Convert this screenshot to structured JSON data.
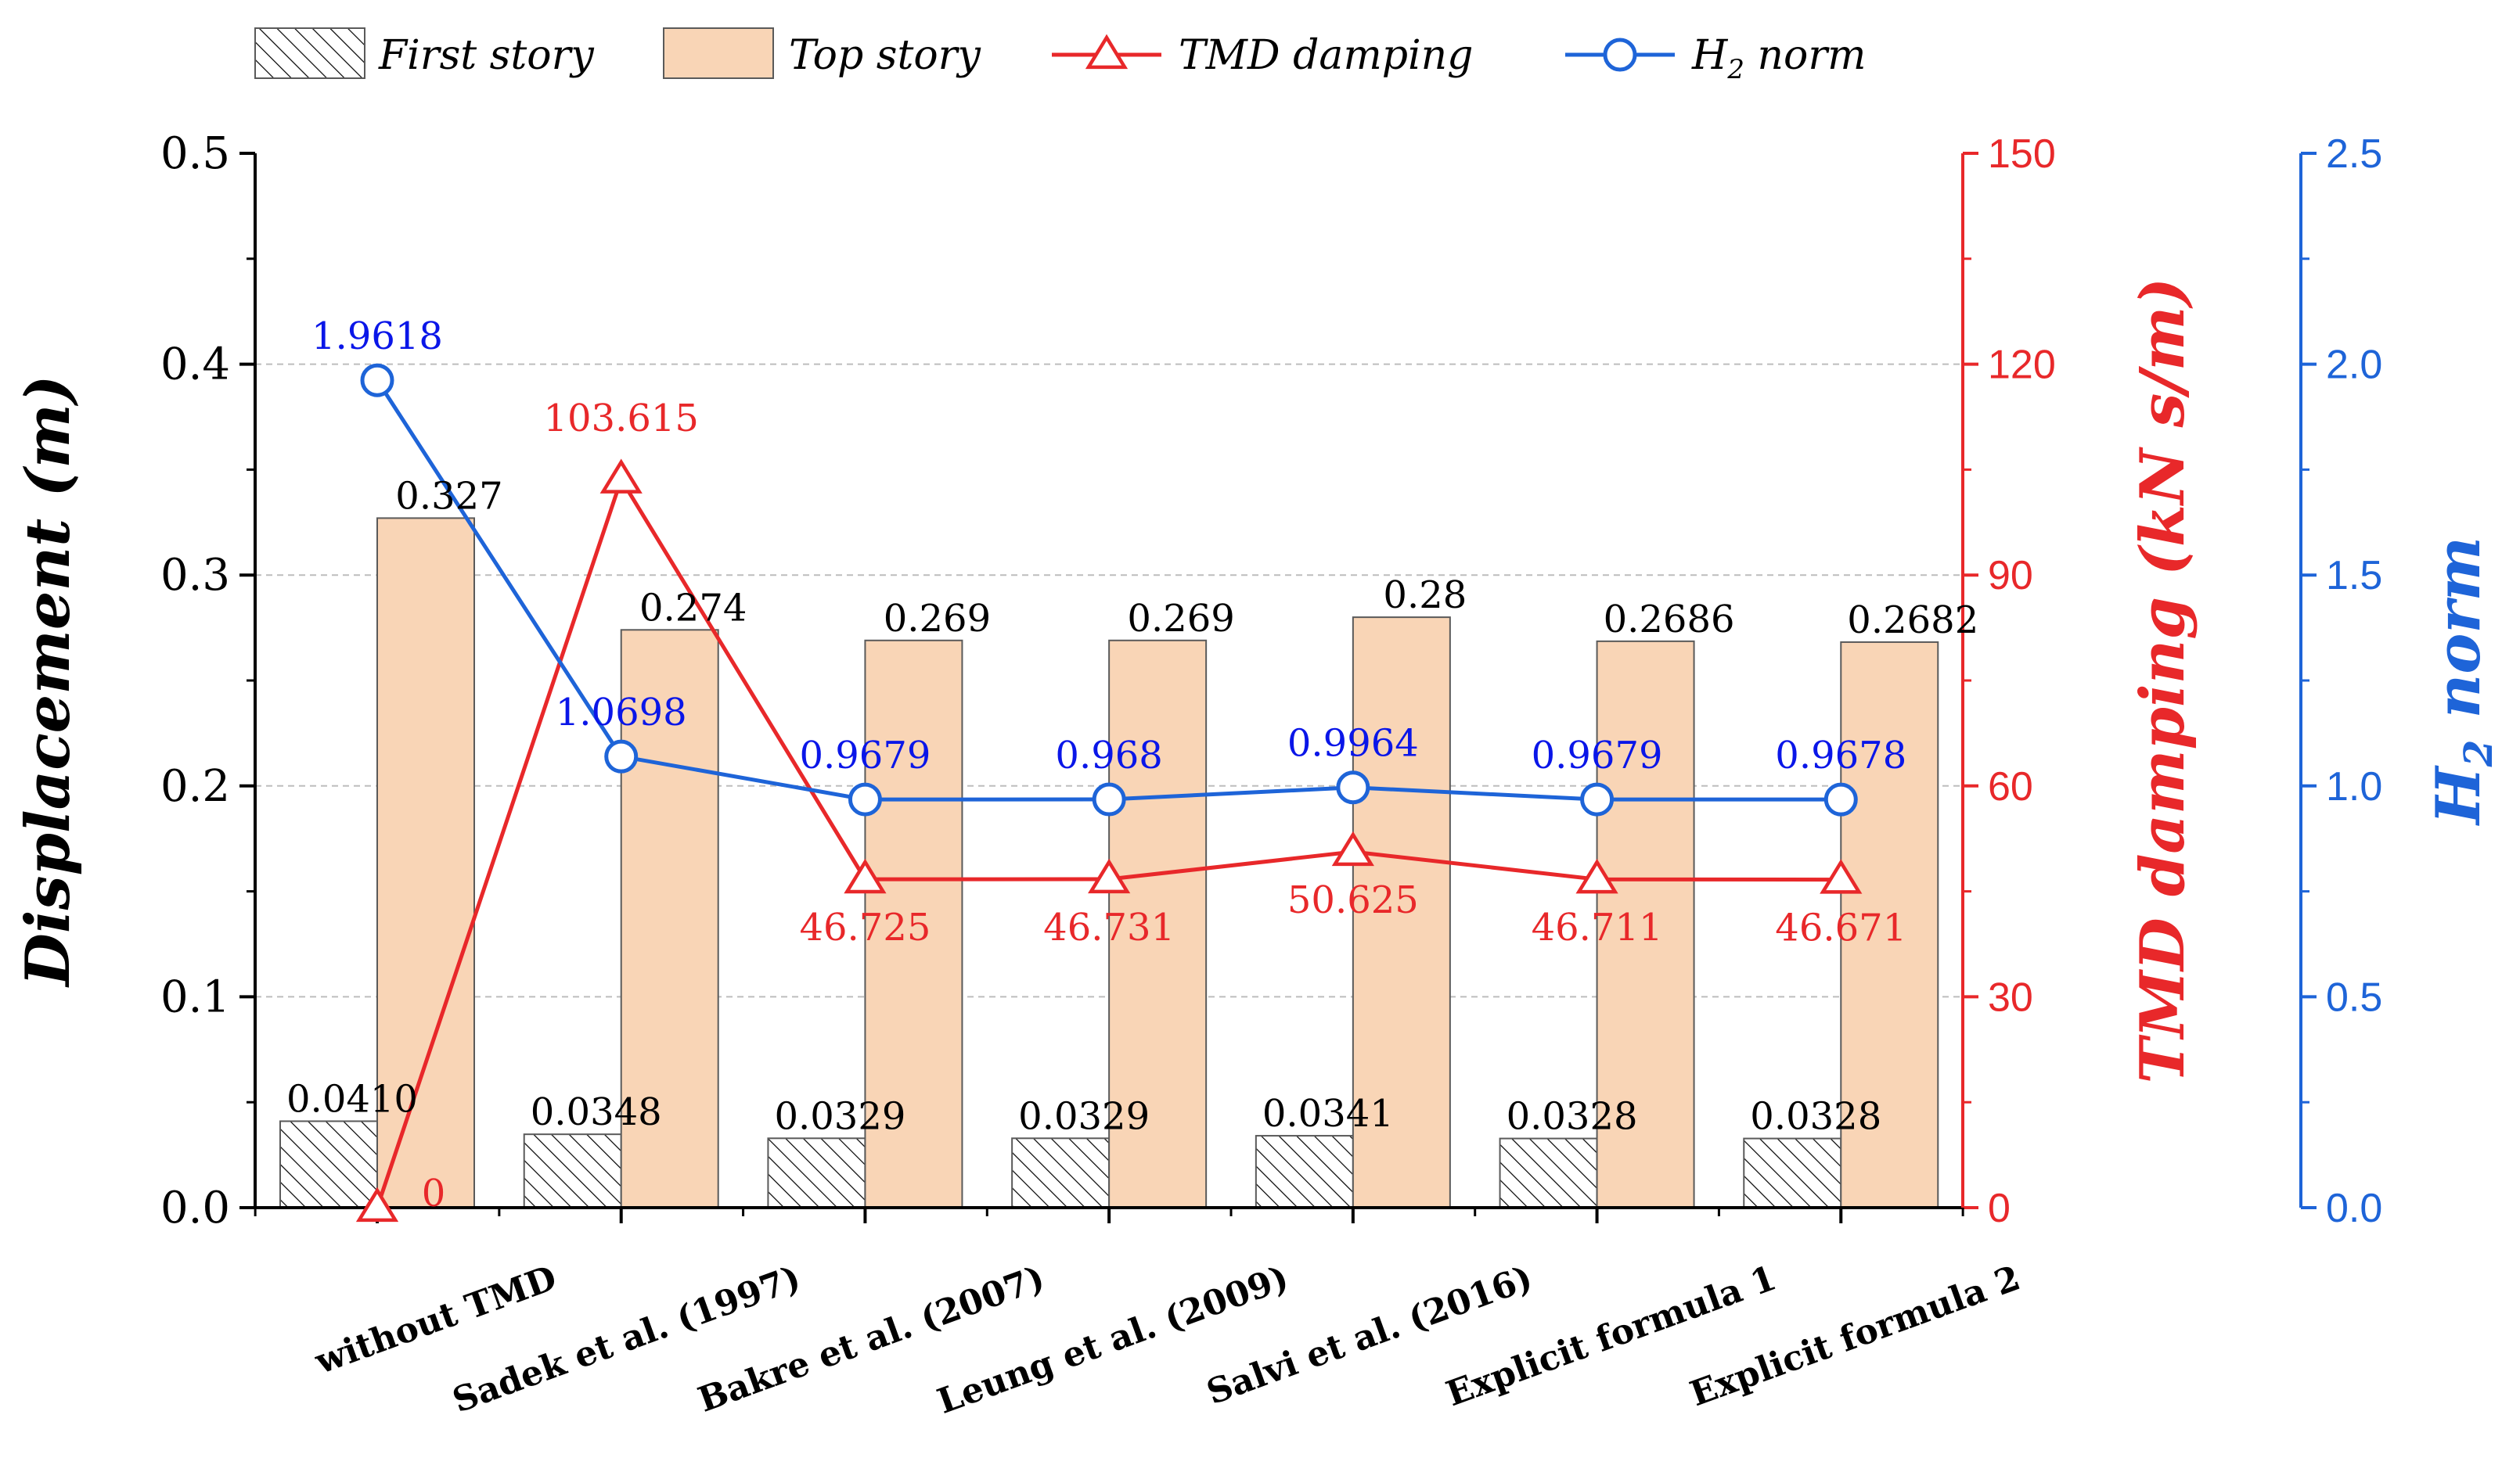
{
  "chart_data": {
    "type": "bar",
    "categories": [
      "without TMD",
      "Sadek et al. (1997)",
      "Bakre et al. (2007)",
      "Leung et al. (2009)",
      "Salvi et al. (2016)",
      "Explicit formula 1",
      "Explicit formula 2"
    ],
    "series": [
      {
        "name": "First story",
        "kind": "bar",
        "axis": "left",
        "values": [
          0.041,
          0.0348,
          0.0329,
          0.0329,
          0.0341,
          0.0328,
          0.0328
        ],
        "labels": [
          "0.0410",
          "0.0348",
          "0.0329",
          "0.0329",
          "0.0341",
          "0.0328",
          "0.0328"
        ],
        "color": "#ffffff",
        "pattern": "hatch"
      },
      {
        "name": "Top story",
        "kind": "bar",
        "axis": "left",
        "values": [
          0.327,
          0.274,
          0.269,
          0.269,
          0.28,
          0.2686,
          0.2682
        ],
        "labels": [
          "0.327",
          "0.274",
          "0.269",
          "0.269",
          "0.28",
          "0.2686",
          "0.2682"
        ],
        "color": "#f9d5b6"
      },
      {
        "name": "TMD damping",
        "kind": "line",
        "marker": "triangle",
        "axis": "right1",
        "values": [
          0,
          103.615,
          46.725,
          46.731,
          50.625,
          46.711,
          46.671
        ],
        "labels": [
          "0",
          "103.615",
          "46.725",
          "46.731",
          "50.625",
          "46.711",
          "46.671"
        ],
        "color": "#e8282a"
      },
      {
        "name": "H2 norm",
        "kind": "line",
        "marker": "circle",
        "axis": "right2",
        "values": [
          1.9618,
          1.0698,
          0.9679,
          0.968,
          0.9964,
          0.9679,
          0.9678
        ],
        "labels": [
          "1.9618",
          "1.0698",
          "0.9679",
          "0.968",
          "0.9964",
          "0.9679",
          "0.9678"
        ],
        "color": "#1e64d8",
        "label_color": "#0a16e8"
      }
    ],
    "axes": {
      "left": {
        "label": "Displacement (m)",
        "range": [
          0,
          0.5
        ],
        "ticks": [
          "0.0",
          "0.1",
          "0.2",
          "0.3",
          "0.4",
          "0.5"
        ]
      },
      "right1": {
        "label": "TMD damping (kN s/m)",
        "range": [
          0,
          150
        ],
        "ticks": [
          "0",
          "30",
          "60",
          "90",
          "120",
          "150"
        ],
        "color": "#e8282a"
      },
      "right2": {
        "label_main": "H",
        "label_sub": "2",
        "label_rest": " norm",
        "range": [
          0,
          2.5
        ],
        "ticks": [
          "0.0",
          "0.5",
          "1.0",
          "1.5",
          "2.0",
          "2.5"
        ],
        "color": "#1e64d8"
      }
    },
    "legend": {
      "position": "top",
      "items": [
        {
          "label": "First story"
        },
        {
          "label": "Top story"
        },
        {
          "label": "TMD damping"
        },
        {
          "label_main": "H",
          "label_sub": "2",
          "label_rest": " norm"
        }
      ]
    },
    "grid": true
  }
}
